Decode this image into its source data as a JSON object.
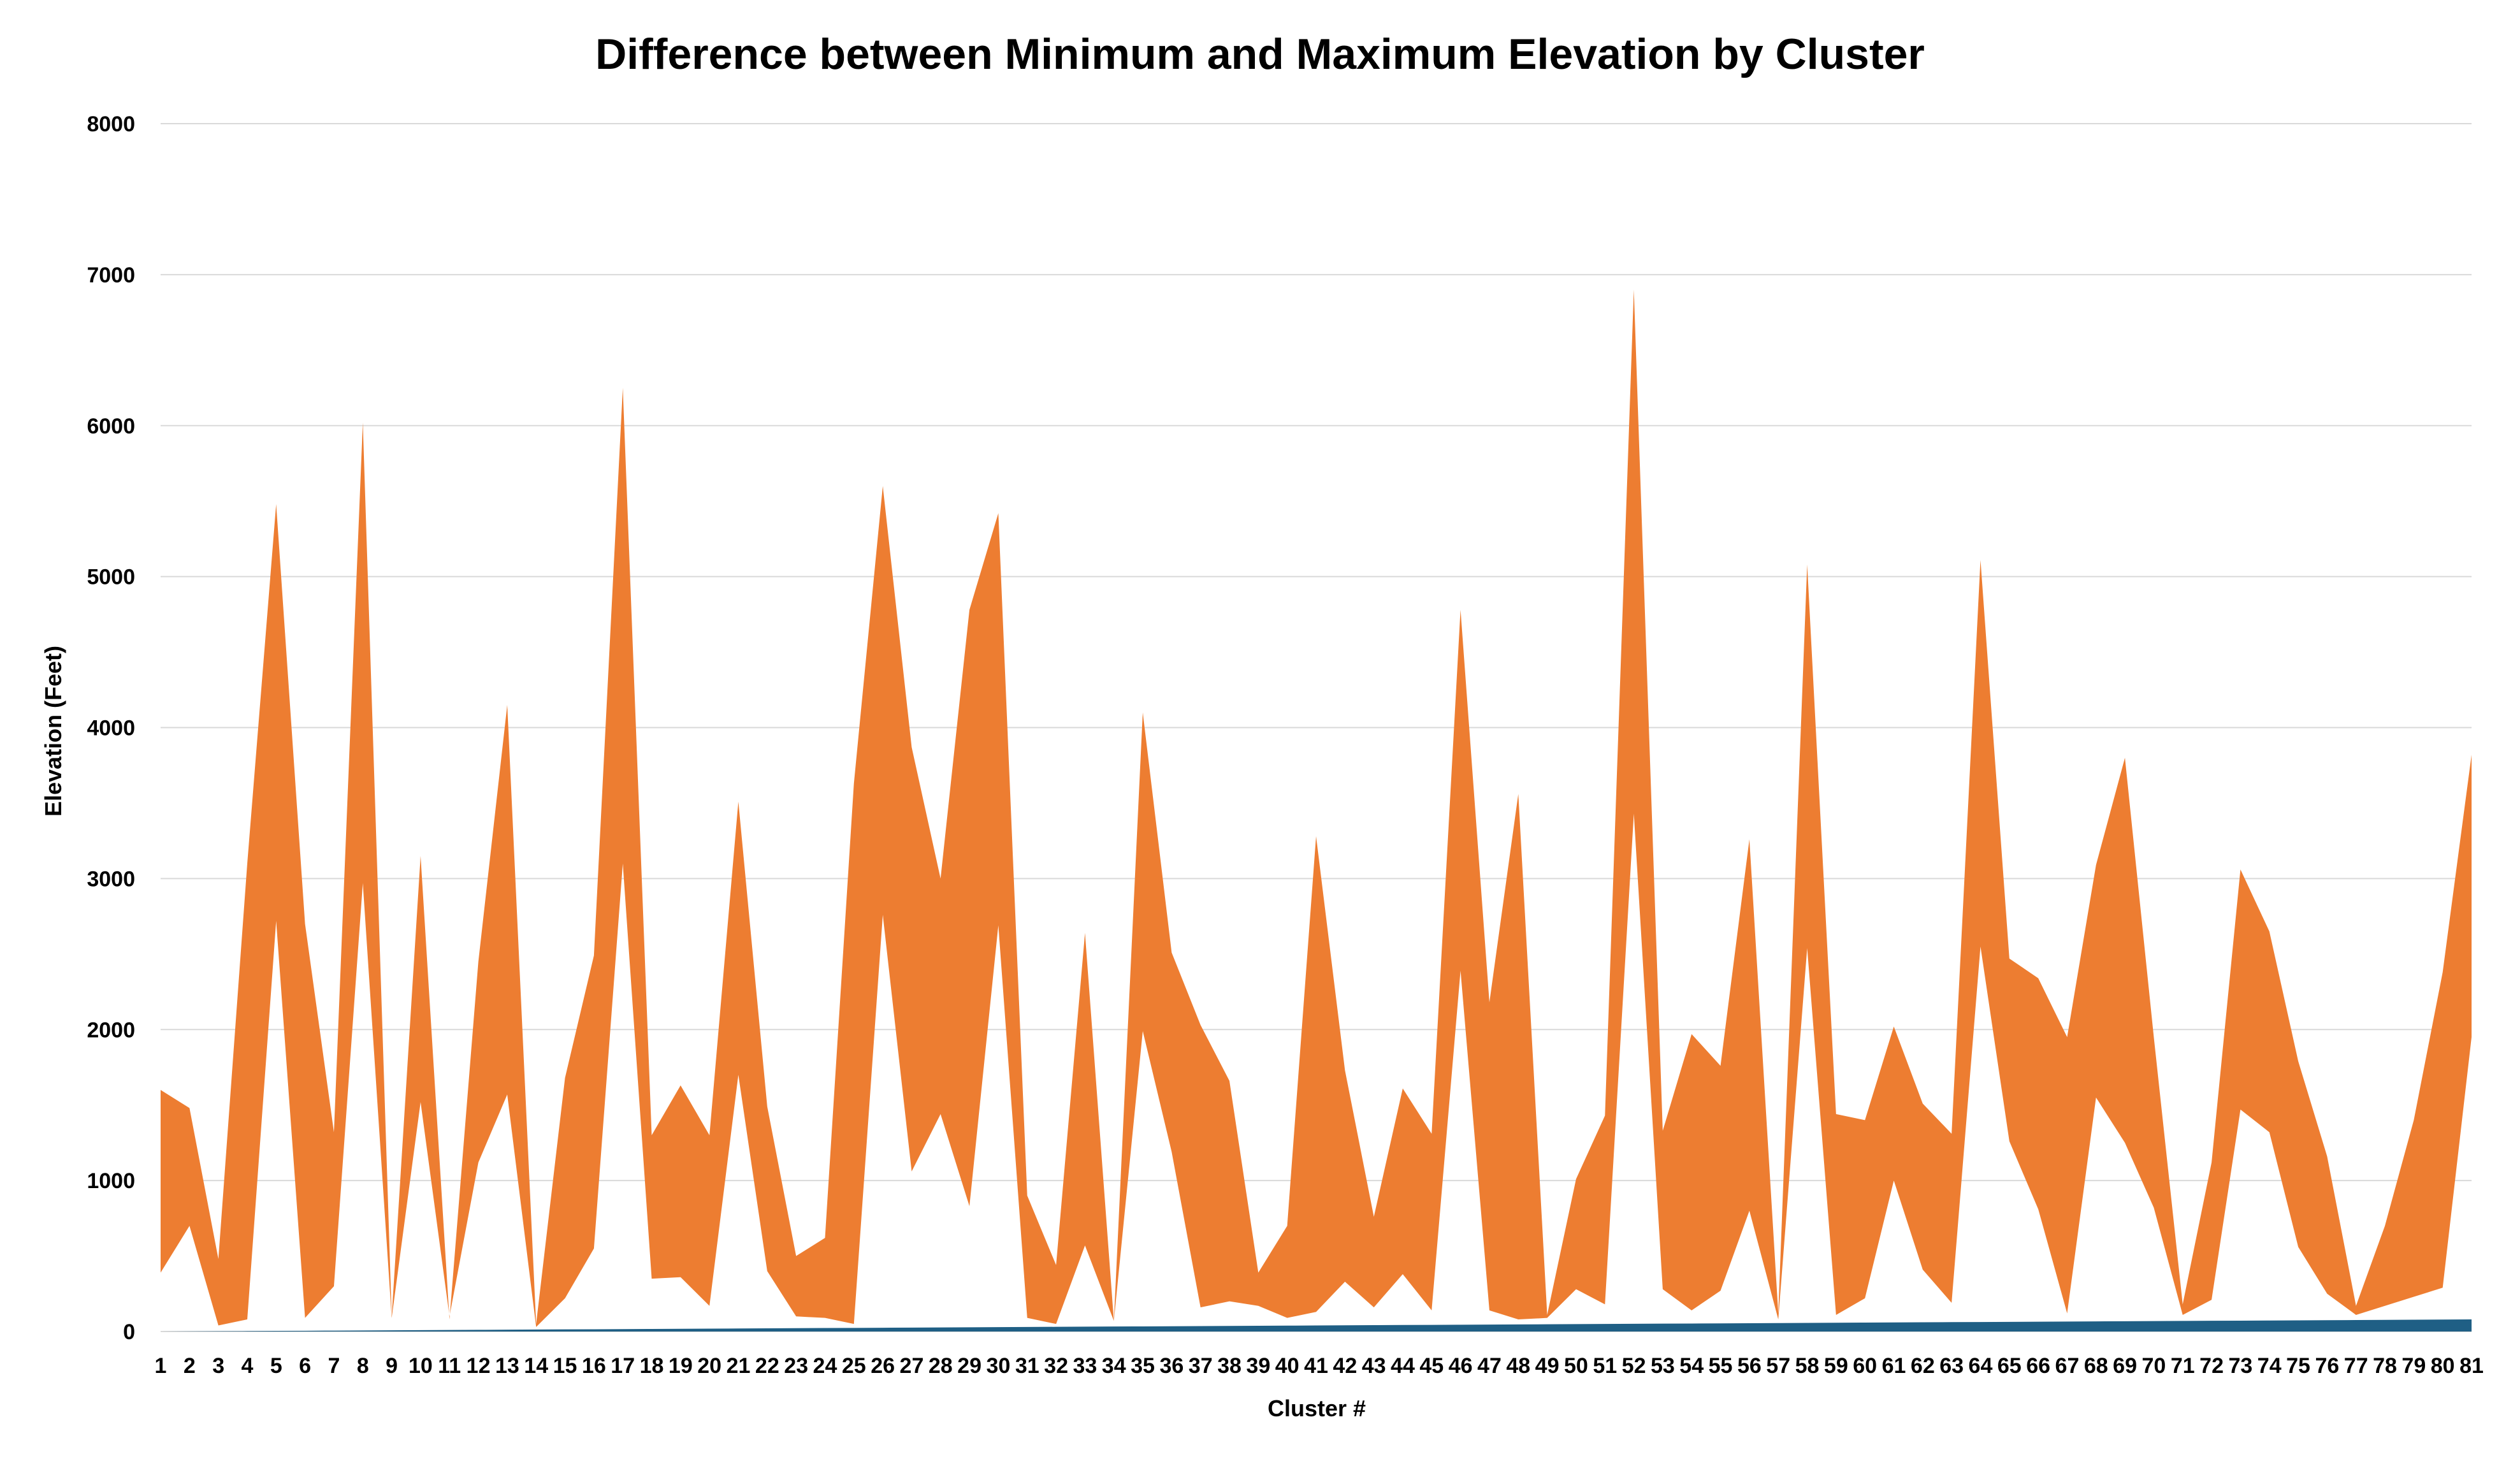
{
  "chart_data": {
    "type": "area",
    "title": "Difference between Minimum and Maximum Elevation by Cluster",
    "xlabel": "Cluster #",
    "ylabel": "Elevation (Feet)",
    "ylim": [
      0,
      8000
    ],
    "yticks": [
      0,
      1000,
      2000,
      3000,
      4000,
      5000,
      6000,
      7000,
      8000
    ],
    "grid": true,
    "colors": {
      "band": "#ED7D31",
      "base": "#1F5F85"
    },
    "categories": [
      1,
      2,
      3,
      4,
      5,
      6,
      7,
      8,
      9,
      10,
      11,
      12,
      13,
      14,
      15,
      16,
      17,
      18,
      19,
      20,
      21,
      22,
      23,
      24,
      25,
      26,
      27,
      28,
      29,
      30,
      31,
      32,
      33,
      34,
      35,
      36,
      37,
      38,
      39,
      40,
      41,
      42,
      43,
      44,
      45,
      46,
      47,
      48,
      49,
      50,
      51,
      52,
      53,
      54,
      55,
      56,
      57,
      58,
      59,
      60,
      61,
      62,
      63,
      64,
      65,
      66,
      67,
      68,
      69,
      70,
      71,
      72,
      73,
      74,
      75,
      76,
      77,
      78,
      79,
      80,
      81
    ],
    "series": [
      {
        "values": [
          1600,
          1480,
          480,
          3100,
          5480,
          2700,
          1320,
          6020,
          100,
          3150,
          80,
          2450,
          4150,
          50,
          1680,
          2490,
          6250,
          1300,
          1630,
          1300,
          3510,
          1490,
          500,
          620,
          3630,
          5600,
          3870,
          3000,
          4780,
          5420,
          900,
          440,
          2640,
          70,
          4100,
          2510,
          2030,
          1660,
          390,
          700,
          3280,
          1730,
          760,
          1610,
          1310,
          4780,
          2180,
          3560,
          110,
          1010,
          1430,
          6900,
          1330,
          1970,
          1760,
          3260,
          120,
          5080,
          1440,
          1400,
          2020,
          1510,
          1310,
          5110,
          2470,
          2340,
          1950,
          3090,
          3800,
          1950,
          180,
          1120,
          3060,
          2650,
          1790,
          1160,
          170,
          700,
          1400,
          2380,
          3820
        ]
      },
      {
        "values": [
          390,
          700,
          40,
          80,
          2720,
          90,
          300,
          2970,
          90,
          1520,
          100,
          1120,
          1570,
          30,
          220,
          550,
          3100,
          350,
          360,
          170,
          1700,
          400,
          100,
          90,
          50,
          2760,
          1060,
          1440,
          830,
          2690,
          90,
          50,
          570,
          70,
          1990,
          1190,
          160,
          200,
          170,
          90,
          130,
          330,
          160,
          380,
          140,
          2390,
          140,
          80,
          90,
          280,
          180,
          3430,
          280,
          140,
          270,
          800,
          80,
          2540,
          110,
          220,
          1000,
          410,
          190,
          2550,
          1260,
          810,
          120,
          1550,
          1250,
          820,
          110,
          210,
          1470,
          1320,
          560,
          250,
          110,
          170,
          230,
          290,
          1950
        ]
      },
      {
        "values": [
          0,
          1,
          2,
          3,
          4,
          5,
          6,
          7,
          8,
          9,
          10,
          11,
          12,
          13,
          14,
          15,
          16,
          17,
          18,
          19,
          20,
          21,
          22,
          23,
          24,
          25,
          26,
          27,
          28,
          29,
          30,
          31,
          32,
          33,
          34,
          35,
          36,
          37,
          38,
          39,
          40,
          41,
          42,
          43,
          44,
          45,
          46,
          47,
          48,
          49,
          50,
          51,
          52,
          53,
          54,
          55,
          56,
          57,
          58,
          59,
          60,
          61,
          62,
          63,
          64,
          65,
          66,
          67,
          68,
          69,
          70,
          71,
          72,
          73,
          74,
          75,
          76,
          77,
          78,
          79,
          80
        ]
      }
    ]
  }
}
